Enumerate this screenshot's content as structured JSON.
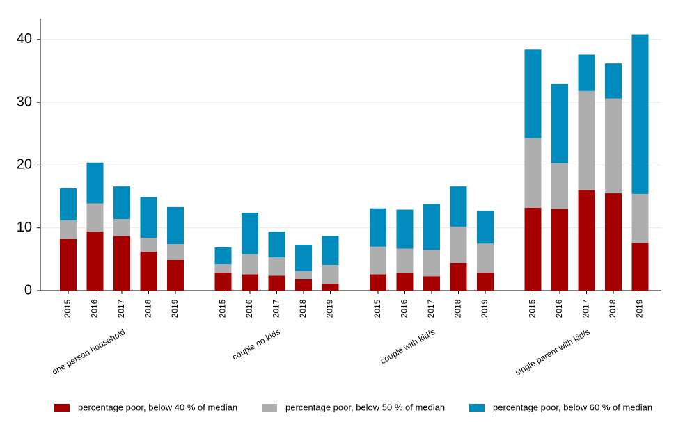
{
  "chart_data": {
    "type": "bar",
    "stacked": true,
    "groups": [
      "one person household",
      "couple no kids",
      "couple with kid/s",
      "single parent with kid/s"
    ],
    "categories": [
      "2015",
      "2016",
      "2017",
      "2018",
      "2019"
    ],
    "series": [
      {
        "name": "percentage poor, below 40 % of median",
        "color": "#a50000",
        "values": [
          [
            8.2,
            9.4,
            8.7,
            6.2,
            4.9
          ],
          [
            2.9,
            2.6,
            2.4,
            1.8,
            1.1
          ],
          [
            2.6,
            2.9,
            2.3,
            4.4,
            2.9
          ],
          [
            13.2,
            13.0,
            16.0,
            15.5,
            7.6
          ]
        ]
      },
      {
        "name": "percentage poor, below 50 % of median",
        "color": "#aeaeae",
        "values": [
          [
            3.0,
            4.5,
            2.7,
            2.2,
            2.5
          ],
          [
            1.3,
            3.2,
            2.9,
            1.3,
            3.0
          ],
          [
            4.4,
            3.8,
            4.2,
            5.8,
            4.6
          ],
          [
            11.1,
            7.3,
            15.8,
            15.1,
            7.8
          ]
        ]
      },
      {
        "name": "percentage poor, below 60 % of median",
        "color": "#008bbc",
        "values": [
          [
            5.1,
            6.5,
            5.2,
            6.5,
            5.9
          ],
          [
            2.7,
            6.6,
            4.1,
            4.2,
            4.6
          ],
          [
            6.1,
            6.2,
            7.3,
            6.4,
            5.2
          ],
          [
            14.1,
            12.6,
            5.8,
            5.6,
            25.4
          ]
        ]
      }
    ],
    "ylim": [
      0,
      43.3
    ],
    "yticks": [
      0,
      10,
      20,
      30,
      40
    ],
    "grid": true,
    "legend": "bottom"
  }
}
